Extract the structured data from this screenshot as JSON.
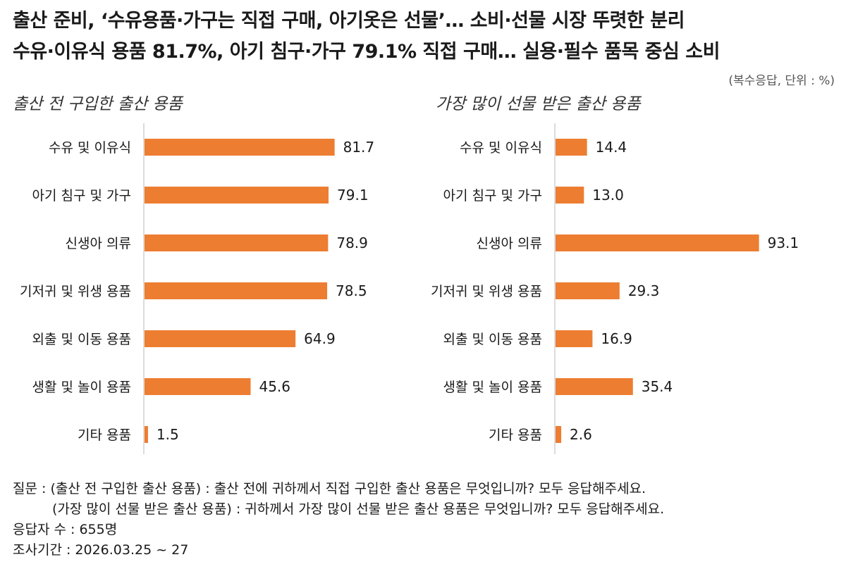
{
  "headline": {
    "line1": "출산 준비, ‘수유용품·가구는 직접 구매, 아기옷은 선물’… 소비·선물 시장 뚜렷한 분리",
    "line2": "수유·이유식 용품 81.7%, 아기 침구·가구 79.1% 직접 구매… 실용·필수 품목 중심 소비"
  },
  "unit_note": "(복수응답, 단위 : %)",
  "chart_data": [
    {
      "type": "bar",
      "orientation": "horizontal",
      "title": "출산 전 구입한 출산 용품",
      "categories": [
        "수유 및 이유식",
        "아기 침구 및 가구",
        "신생아 의류",
        "기저귀 및 위생 용품",
        "외출 및 이동 용품",
        "생활 및 놀이 용품",
        "기타 용품"
      ],
      "values": [
        81.7,
        79.1,
        78.9,
        78.5,
        64.9,
        45.6,
        1.5
      ],
      "labels": [
        "81.7",
        "79.1",
        "78.9",
        "78.5",
        "64.9",
        "45.6",
        "1.5"
      ],
      "xlim": [
        0,
        100
      ],
      "color": "#ED7D31"
    },
    {
      "type": "bar",
      "orientation": "horizontal",
      "title": "가장 많이 선물 받은 출산 용품",
      "categories": [
        "수유 및 이유식",
        "아기 침구 및 가구",
        "신생아 의류",
        "기저귀 및 위생 용품",
        "외출 및 이동 용품",
        "생활 및 놀이 용품",
        "기타 용품"
      ],
      "values": [
        14.4,
        13.0,
        93.1,
        29.3,
        16.9,
        35.4,
        2.6
      ],
      "labels": [
        "14.4",
        "13.0",
        "93.1",
        "29.3",
        "16.9",
        "35.4",
        "2.6"
      ],
      "xlim": [
        0,
        100
      ],
      "color": "#ED7D31"
    }
  ],
  "notes": {
    "question1": "질문 : (출산 전 구입한 출산 용품) : 출산 전에 귀하께서 직접 구입한 출산 용품은 무엇입니까? 모두 응답해주세요.",
    "question2": "(가장 많이 선물 받은 출산 용품) : 귀하께서 가장 많이 선물 받은 출산 용품은 무엇입니까? 모두 응답해주세요.",
    "respondents": "응답자 수 : 655명",
    "period": "조사기간 : 2026.03.25 ~ 27"
  }
}
